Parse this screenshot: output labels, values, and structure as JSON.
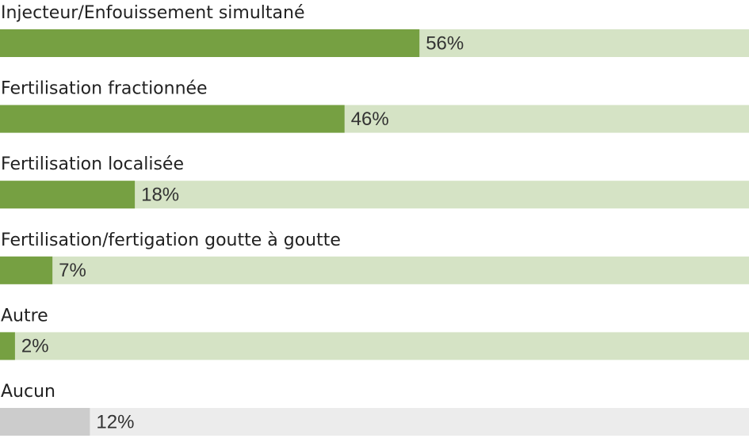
{
  "chart_data": {
    "type": "bar",
    "categories": [
      "Injecteur/Enfouissement simultané",
      "Fertilisation fractionnée",
      "Fertilisation localisée",
      "Fertilisation/fertigation goutte à goutte",
      "Autre",
      "Aucun"
    ],
    "values": [
      56,
      46,
      18,
      7,
      2,
      12
    ],
    "value_labels": [
      "56%",
      "46%",
      "18%",
      "7%",
      "2%",
      "12%"
    ],
    "colors": [
      "#76a042",
      "#76a042",
      "#76a042",
      "#76a042",
      "#76a042",
      "#cccccc"
    ],
    "track_colors": [
      "#d5e3c5",
      "#d5e3c5",
      "#d5e3c5",
      "#d5e3c5",
      "#d5e3c5",
      "#ececec"
    ],
    "xlim": [
      0,
      100
    ]
  }
}
